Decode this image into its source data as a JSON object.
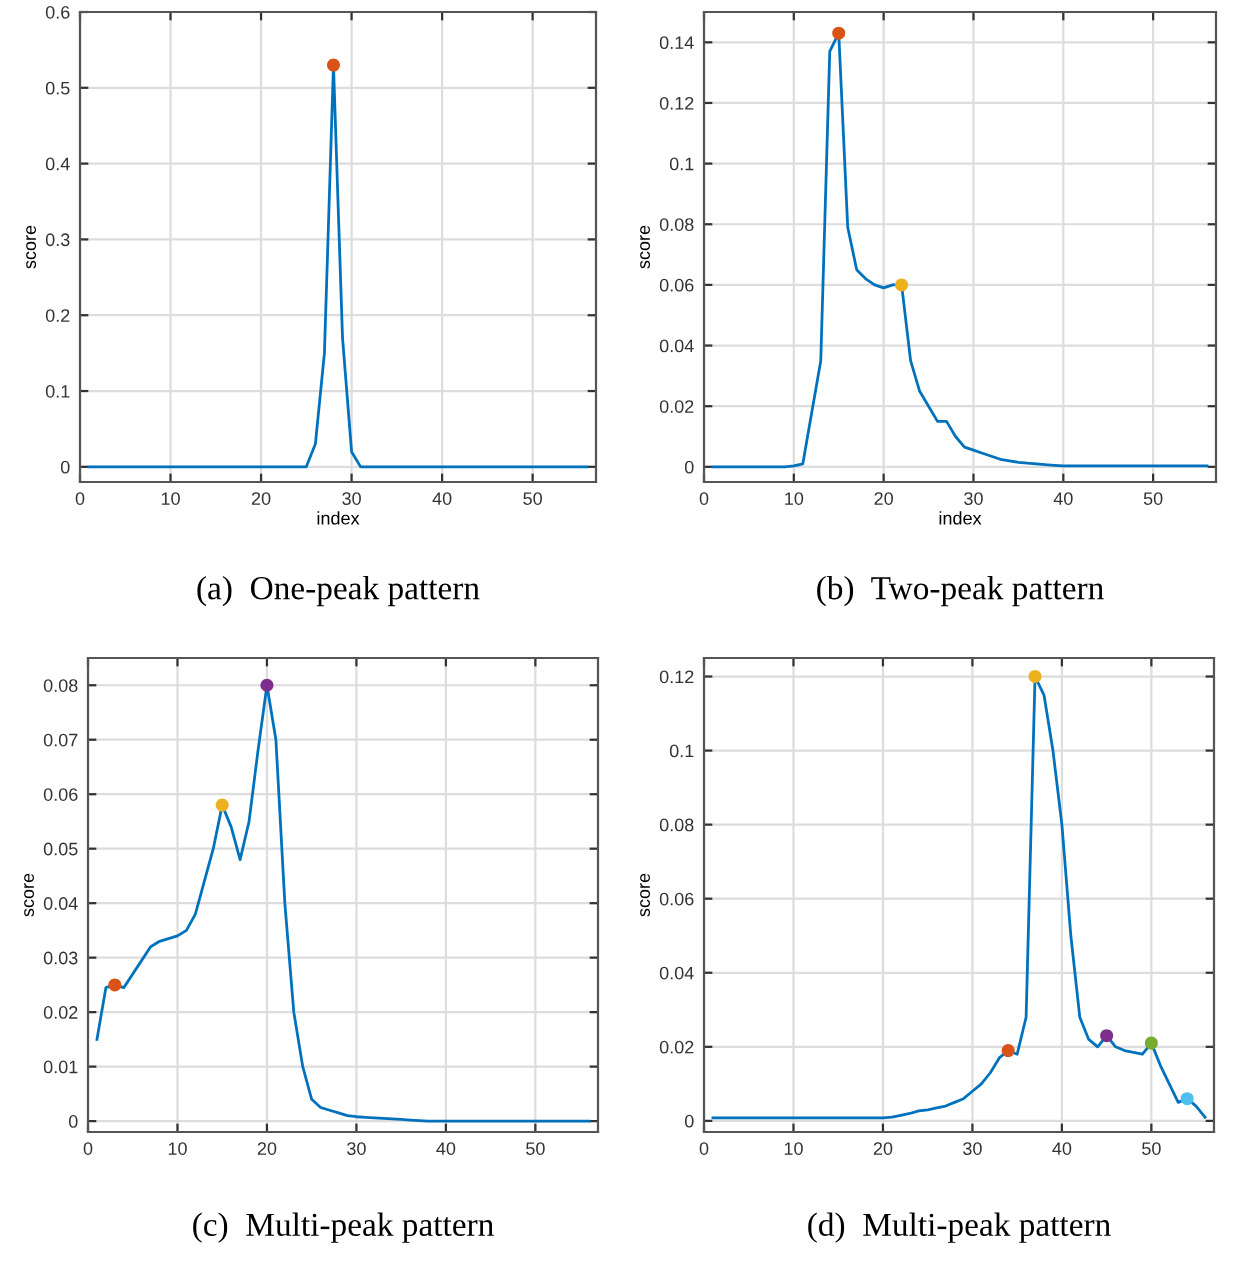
{
  "chart_data": [
    {
      "type": "line",
      "title": "(a)  One-peak pattern",
      "xlabel": "index",
      "ylabel": "score",
      "xlim": [
        0,
        57
      ],
      "xticks": [
        0,
        10,
        20,
        30,
        40,
        50
      ],
      "ylim": [
        -0.02,
        0.6
      ],
      "yticks": [
        0,
        0.1,
        0.2,
        0.3,
        0.4,
        0.5,
        0.6
      ],
      "grid": true,
      "series": [
        {
          "color": "#0072bd",
          "x": [
            1,
            2,
            3,
            4,
            5,
            6,
            7,
            8,
            9,
            10,
            11,
            12,
            13,
            14,
            15,
            16,
            17,
            18,
            19,
            20,
            21,
            22,
            23,
            24,
            25,
            26,
            27,
            28,
            29,
            30,
            31,
            32,
            33,
            34,
            35,
            36,
            37,
            38,
            39,
            40,
            41,
            42,
            43,
            44,
            45,
            46,
            47,
            48,
            49,
            50,
            51,
            52,
            53,
            54,
            55,
            56
          ],
          "values": [
            0,
            0,
            0,
            0,
            0,
            0,
            0,
            0,
            0,
            0,
            0,
            0,
            0,
            0,
            0,
            0,
            0,
            0,
            0,
            0,
            0,
            0,
            0,
            0,
            0,
            0.03,
            0.15,
            0.53,
            0.17,
            0.02,
            0,
            0,
            0,
            0,
            0,
            0,
            0,
            0,
            0,
            0,
            0,
            0,
            0,
            0,
            0,
            0,
            0,
            0,
            0,
            0,
            0,
            0,
            0,
            0,
            0,
            0
          ]
        },
        {
          "type": "scatter",
          "marker": "circle",
          "x": [
            28
          ],
          "values": [
            0.53
          ],
          "colors": [
            "#d95319"
          ]
        }
      ]
    },
    {
      "type": "line",
      "title": "(b)  Two-peak pattern",
      "xlabel": "index",
      "ylabel": "score",
      "xlim": [
        0,
        57
      ],
      "xticks": [
        0,
        10,
        20,
        30,
        40,
        50
      ],
      "ylim": [
        -0.005,
        0.15
      ],
      "yticks": [
        0,
        0.02,
        0.04,
        0.06,
        0.08,
        0.1,
        0.12,
        0.14
      ],
      "grid": true,
      "series": [
        {
          "color": "#0072bd",
          "x": [
            1,
            2,
            3,
            4,
            5,
            6,
            7,
            8,
            9,
            10,
            11,
            12,
            13,
            14,
            15,
            16,
            17,
            18,
            19,
            20,
            21,
            22,
            23,
            24,
            25,
            26,
            27,
            28,
            29,
            30,
            31,
            32,
            33,
            34,
            35,
            36,
            37,
            38,
            39,
            40,
            41,
            42,
            43,
            44,
            45,
            46,
            47,
            48,
            49,
            50,
            51,
            52,
            53,
            54,
            55,
            56
          ],
          "values": [
            0,
            0,
            0,
            0,
            0,
            0,
            0,
            0,
            0,
            0.0003,
            0.001,
            0.018,
            0.035,
            0.137,
            0.143,
            0.079,
            0.065,
            0.062,
            0.06,
            0.059,
            0.06,
            0.06,
            0.035,
            0.025,
            0.02,
            0.015,
            0.015,
            0.01,
            0.0065,
            0.0055,
            0.0045,
            0.0035,
            0.0025,
            0.002,
            0.0015,
            0.0012,
            0.001,
            0.0007,
            0.0005,
            0.0003,
            0.0003,
            0.0003,
            0.0003,
            0.0003,
            0.0003,
            0.0003,
            0.0003,
            0.0003,
            0.0003,
            0.0003,
            0.0003,
            0.0003,
            0.0003,
            0.0003,
            0.0003,
            0.0003
          ]
        },
        {
          "type": "scatter",
          "marker": "circle",
          "x": [
            15,
            22
          ],
          "values": [
            0.143,
            0.06
          ],
          "colors": [
            "#d95319",
            "#edb120"
          ]
        }
      ]
    },
    {
      "type": "line",
      "title": "(c)  Multi-peak pattern",
      "ylabel": "score",
      "xlim": [
        0,
        57
      ],
      "xticks": [
        0,
        10,
        20,
        30,
        40,
        50
      ],
      "ylim": [
        -0.002,
        0.085
      ],
      "yticks": [
        0,
        0.01,
        0.02,
        0.03,
        0.04,
        0.05,
        0.06,
        0.07,
        0.08
      ],
      "grid": true,
      "series": [
        {
          "color": "#0072bd",
          "x": [
            1,
            2,
            3,
            4,
            5,
            6,
            7,
            8,
            9,
            10,
            11,
            12,
            13,
            14,
            15,
            16,
            17,
            18,
            19,
            20,
            21,
            22,
            23,
            24,
            25,
            26,
            27,
            28,
            29,
            30,
            31,
            32,
            33,
            34,
            35,
            36,
            37,
            38,
            39,
            40,
            41,
            42,
            43,
            44,
            45,
            46,
            47,
            48,
            49,
            50,
            51,
            52,
            53,
            54,
            55,
            56
          ],
          "values": [
            0.015,
            0.0245,
            0.025,
            0.0245,
            0.027,
            0.0295,
            0.032,
            0.033,
            0.0335,
            0.034,
            0.035,
            0.038,
            0.044,
            0.05,
            0.058,
            0.054,
            0.048,
            0.055,
            0.068,
            0.08,
            0.07,
            0.04,
            0.02,
            0.01,
            0.004,
            0.0025,
            0.002,
            0.0015,
            0.001,
            0.0008,
            0.0007,
            0.0006,
            0.0005,
            0.0004,
            0.0003,
            0.0002,
            0.0001,
            0,
            0,
            0,
            0,
            0,
            0,
            0,
            0,
            0,
            0,
            0,
            0,
            0,
            0,
            0,
            0,
            0,
            0,
            0
          ]
        },
        {
          "type": "scatter",
          "marker": "circle",
          "x": [
            3,
            15,
            20
          ],
          "values": [
            0.025,
            0.058,
            0.08
          ],
          "colors": [
            "#d95319",
            "#edb120",
            "#7e2f8e"
          ]
        }
      ]
    },
    {
      "type": "line",
      "title": "(d)  Multi-peak pattern",
      "ylabel": "score",
      "xlim": [
        0,
        57
      ],
      "xticks": [
        0,
        10,
        20,
        30,
        40,
        50
      ],
      "ylim": [
        -0.003,
        0.125
      ],
      "yticks": [
        0,
        0.02,
        0.04,
        0.06,
        0.08,
        0.1,
        0.12
      ],
      "grid": true,
      "series": [
        {
          "color": "#0072bd",
          "x": [
            1,
            2,
            3,
            4,
            5,
            6,
            7,
            8,
            9,
            10,
            11,
            12,
            13,
            14,
            15,
            16,
            17,
            18,
            19,
            20,
            21,
            22,
            23,
            24,
            25,
            26,
            27,
            28,
            29,
            30,
            31,
            32,
            33,
            34,
            35,
            36,
            37,
            38,
            39,
            40,
            41,
            42,
            43,
            44,
            45,
            46,
            47,
            48,
            49,
            50,
            51,
            52,
            53,
            54,
            55,
            56
          ],
          "values": [
            0.0008,
            0.0008,
            0.0008,
            0.0008,
            0.0008,
            0.0008,
            0.0008,
            0.0008,
            0.0008,
            0.0008,
            0.0008,
            0.0008,
            0.0008,
            0.0008,
            0.0008,
            0.0008,
            0.0008,
            0.0008,
            0.0008,
            0.0008,
            0.001,
            0.0015,
            0.002,
            0.0027,
            0.003,
            0.0035,
            0.004,
            0.005,
            0.006,
            0.008,
            0.01,
            0.013,
            0.017,
            0.019,
            0.018,
            0.028,
            0.12,
            0.115,
            0.1,
            0.08,
            0.05,
            0.028,
            0.022,
            0.02,
            0.023,
            0.02,
            0.019,
            0.0185,
            0.018,
            0.021,
            0.015,
            0.01,
            0.005,
            0.006,
            0.004,
            0.001
          ]
        },
        {
          "type": "scatter",
          "marker": "circle",
          "x": [
            34,
            37,
            45,
            50,
            54
          ],
          "values": [
            0.019,
            0.12,
            0.023,
            0.021,
            0.006
          ],
          "colors": [
            "#d95319",
            "#edb120",
            "#7e2f8e",
            "#77ac30",
            "#4dbeee"
          ]
        }
      ]
    }
  ]
}
